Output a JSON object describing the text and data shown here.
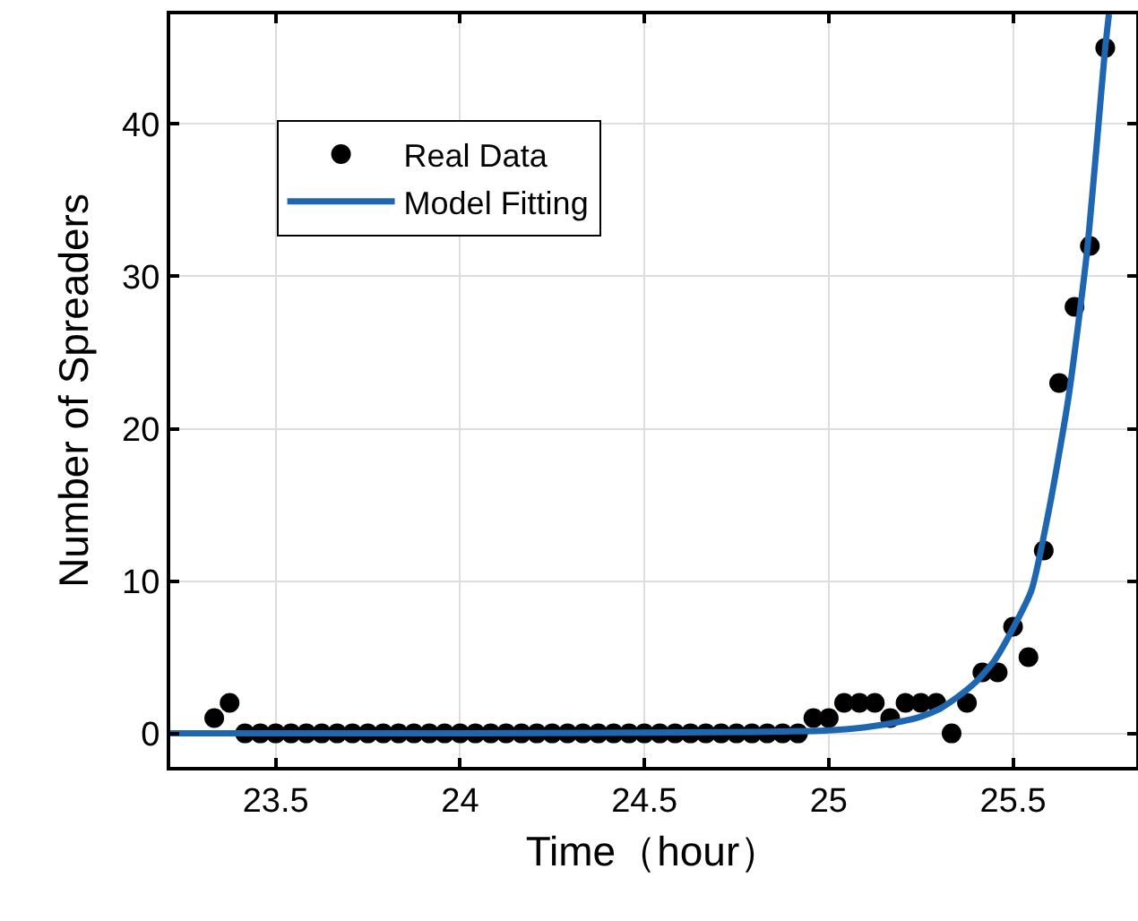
{
  "chart_data": {
    "type": "scatter",
    "xlabel": "Time（hour）",
    "ylabel": "Number of Spreaders",
    "xlim": [
      23.214,
      25.834
    ],
    "ylim": [
      -2.2,
      47.2
    ],
    "xticks": [
      23.5,
      24,
      24.5,
      25,
      25.5
    ],
    "yticks": [
      0,
      10,
      20,
      30,
      40
    ],
    "grid": true,
    "legend": "top left",
    "marker": "circle",
    "series": [
      {
        "name": "Real Data",
        "color": "#000000",
        "x": [
          23.3333,
          23.375,
          23.4167,
          23.4583,
          23.5,
          23.5417,
          23.5833,
          23.625,
          23.6667,
          23.7083,
          23.75,
          23.7917,
          23.8333,
          23.875,
          23.9167,
          23.9583,
          24,
          24.0417,
          24.0833,
          24.125,
          24.1667,
          24.2083,
          24.25,
          24.2917,
          24.3333,
          24.375,
          24.4167,
          24.4583,
          24.5,
          24.5417,
          24.5833,
          24.625,
          24.6667,
          24.7083,
          24.75,
          24.7917,
          24.8333,
          24.875,
          24.9167,
          24.9583,
          25,
          25.0417,
          25.0833,
          25.125,
          25.1667,
          25.2083,
          25.25,
          25.2917,
          25.3333,
          25.375,
          25.4167,
          25.4583,
          25.5,
          25.5417,
          25.5833,
          25.625,
          25.6667,
          25.7083,
          25.75
        ],
        "values": [
          1,
          2,
          0,
          0,
          0,
          0,
          0,
          0,
          0,
          0,
          0,
          0,
          0,
          0,
          0,
          0,
          0,
          0,
          0,
          0,
          0,
          0,
          0,
          0,
          0,
          0,
          0,
          0,
          0,
          0,
          0,
          0,
          0,
          0,
          0,
          0,
          0,
          0,
          0,
          1,
          1,
          2,
          2,
          2,
          1,
          2,
          2,
          2,
          0,
          2,
          4,
          4,
          7,
          5,
          12,
          23,
          28,
          32,
          45
        ]
      },
      {
        "name": "Model Fitting",
        "type": "line",
        "color": "#1f66b0",
        "line_style": "solid",
        "marker": "none",
        "x": [
          23.214,
          24,
          24.8,
          25,
          25.1,
          25.2,
          25.25,
          25.3,
          25.35,
          25.4,
          25.45,
          25.5,
          25.55,
          25.6,
          25.65,
          25.7,
          25.75,
          25.76
        ],
        "values": [
          0,
          0,
          0.1,
          0.2,
          0.4,
          0.8,
          1.1,
          1.6,
          2.4,
          3.4,
          4.8,
          6.9,
          9.4,
          15,
          22,
          31.5,
          45,
          47.2
        ]
      }
    ]
  }
}
